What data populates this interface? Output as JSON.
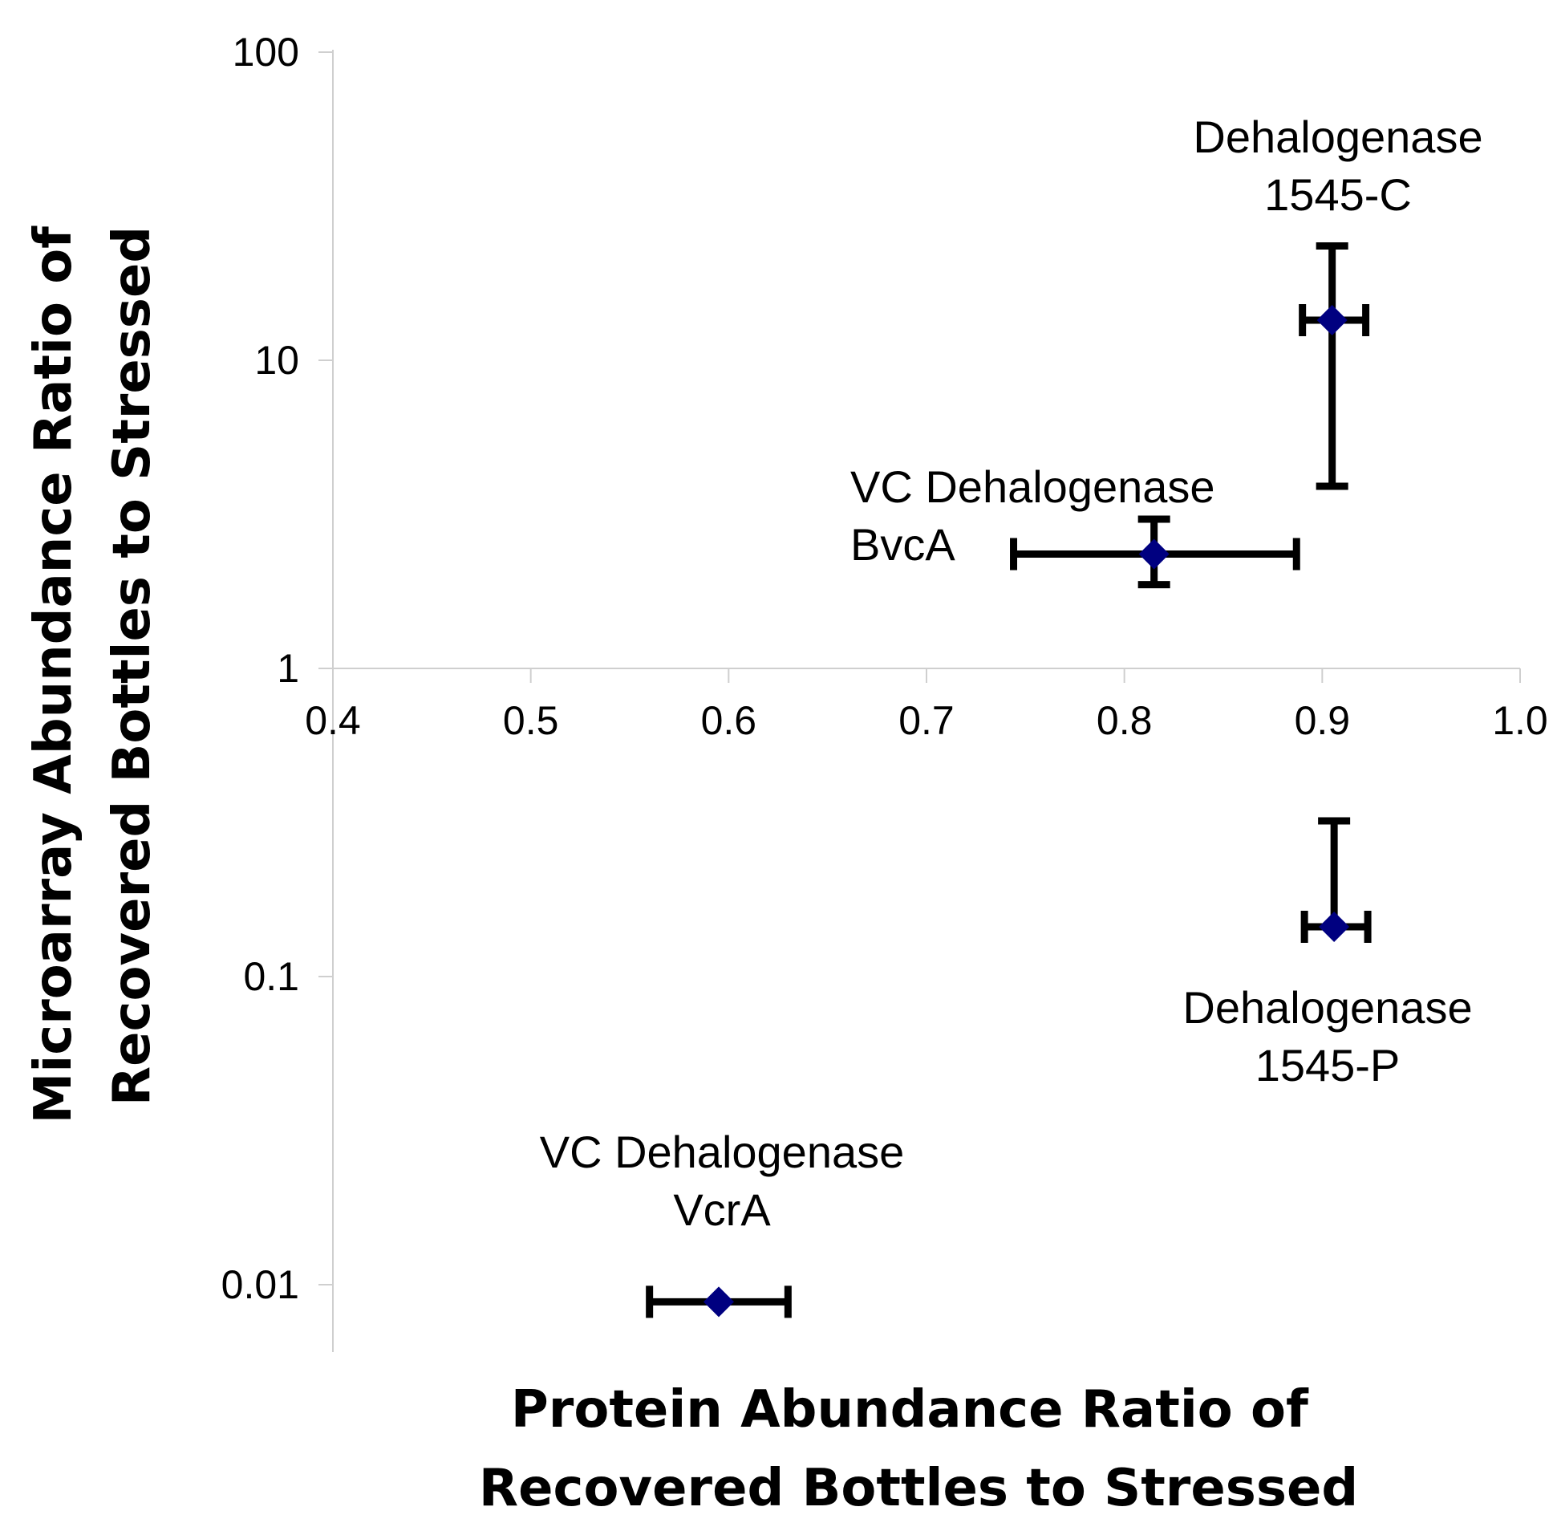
{
  "chart_data": {
    "type": "scatter",
    "y_scale": "log",
    "x_range": [
      0.4,
      1.0
    ],
    "y_range": [
      0.005,
      100
    ],
    "x_ticks": [
      "0.4",
      "0.5",
      "0.6",
      "0.7",
      "0.8",
      "0.9",
      "1.0"
    ],
    "y_ticks": [
      "100",
      "10",
      "1",
      "0.1",
      "0.01"
    ],
    "xlabel_lines": [
      "Protein Abundance Ratio of",
      "Recovered Bottles to Stressed"
    ],
    "ylabel_lines": [
      "Microarray Abundance Ratio of",
      "Recovered Bottles to Stressed"
    ],
    "marker_color": "#000080",
    "errorbar_color": "#000000",
    "points": [
      {
        "label_lines": [
          "Dehalogenase",
          "1545-C"
        ],
        "x": 0.905,
        "y": 13.5,
        "x_err": [
          0.89,
          0.922
        ],
        "y_err": [
          3.9,
          23.5
        ]
      },
      {
        "label_lines": [
          "VC Dehalogenase",
          "BvcA"
        ],
        "x": 0.815,
        "y": 2.35,
        "x_err": [
          0.744,
          0.887
        ],
        "y_err": [
          1.87,
          3.05
        ]
      },
      {
        "label_lines": [
          "Dehalogenase",
          "1545-P"
        ],
        "x": 0.906,
        "y": 0.145,
        "x_err": [
          0.891,
          0.923
        ],
        "y_err": [
          0.145,
          0.32
        ]
      },
      {
        "label_lines": [
          "VC Dehalogenase",
          "VcrA"
        ],
        "x": 0.595,
        "y": 0.0088,
        "x_err": [
          0.56,
          0.63
        ],
        "y_err": [
          0.0088,
          0.0088
        ]
      }
    ]
  }
}
